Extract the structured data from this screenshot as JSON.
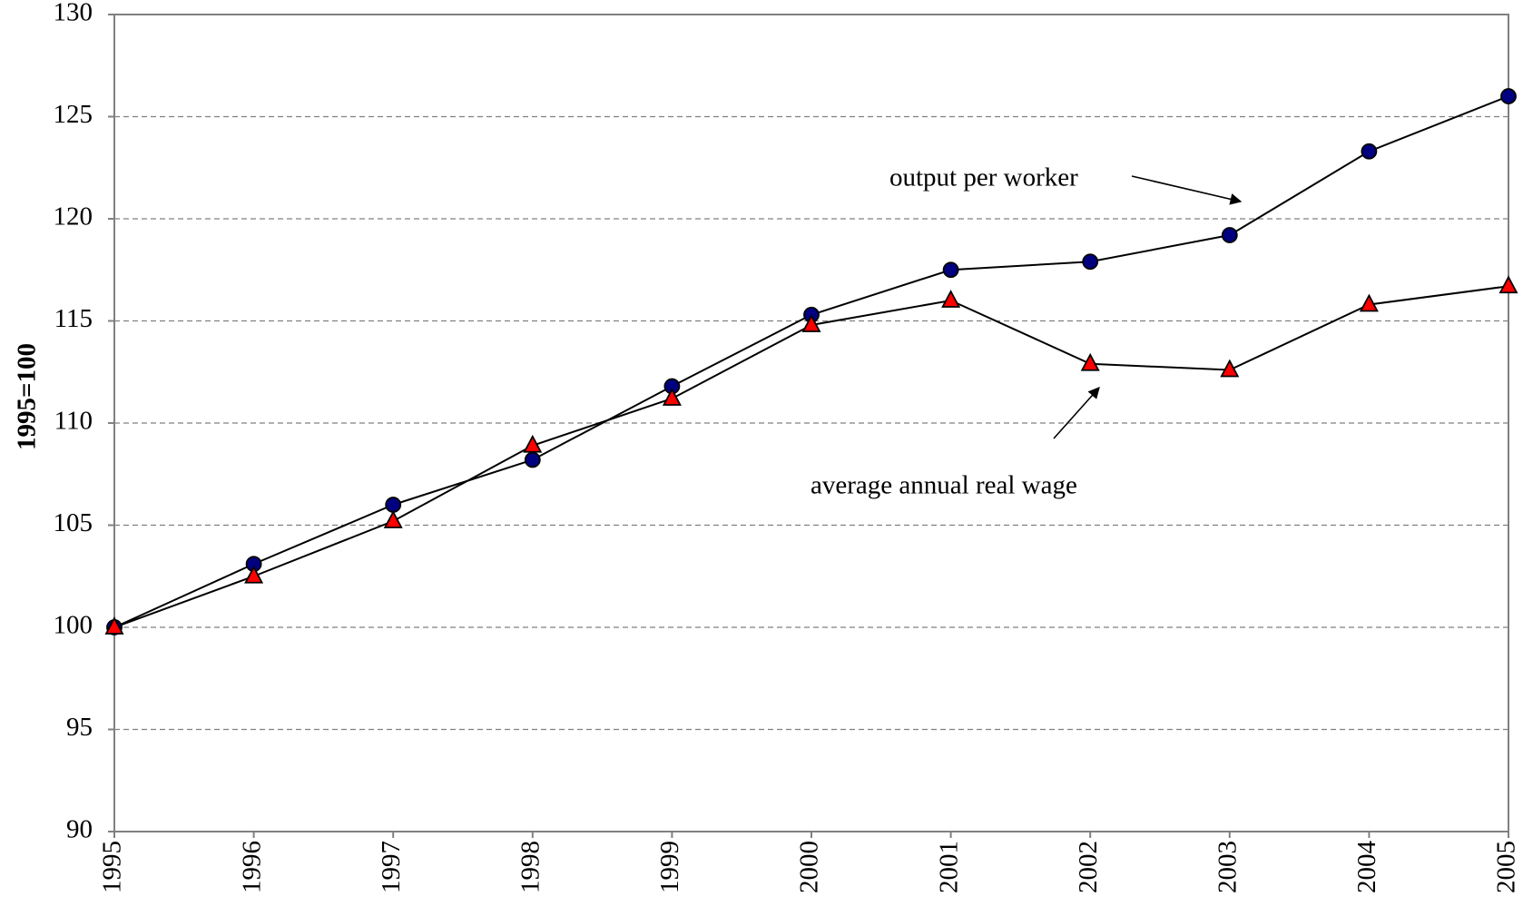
{
  "chart_data": {
    "type": "line",
    "y_label": "1995=100",
    "x": [
      1995,
      1996,
      1997,
      1998,
      1999,
      2000,
      2001,
      2002,
      2003,
      2004,
      2005
    ],
    "xlim": [
      1995,
      2005
    ],
    "ylim": [
      90,
      130
    ],
    "yticks": [
      90,
      95,
      100,
      105,
      110,
      115,
      120,
      125,
      130
    ],
    "grid": true,
    "series": [
      {
        "name": "output per worker",
        "color": "#000080",
        "marker": "circle",
        "values": [
          100,
          103.1,
          106.0,
          108.2,
          111.8,
          115.3,
          117.5,
          117.9,
          119.2,
          123.3,
          126.0
        ]
      },
      {
        "name": "average annual real wage",
        "color": "#ff0000",
        "marker": "triangle",
        "values": [
          100,
          102.5,
          105.2,
          108.9,
          111.2,
          114.8,
          116.0,
          112.9,
          112.6,
          115.8,
          116.7
        ]
      }
    ]
  }
}
